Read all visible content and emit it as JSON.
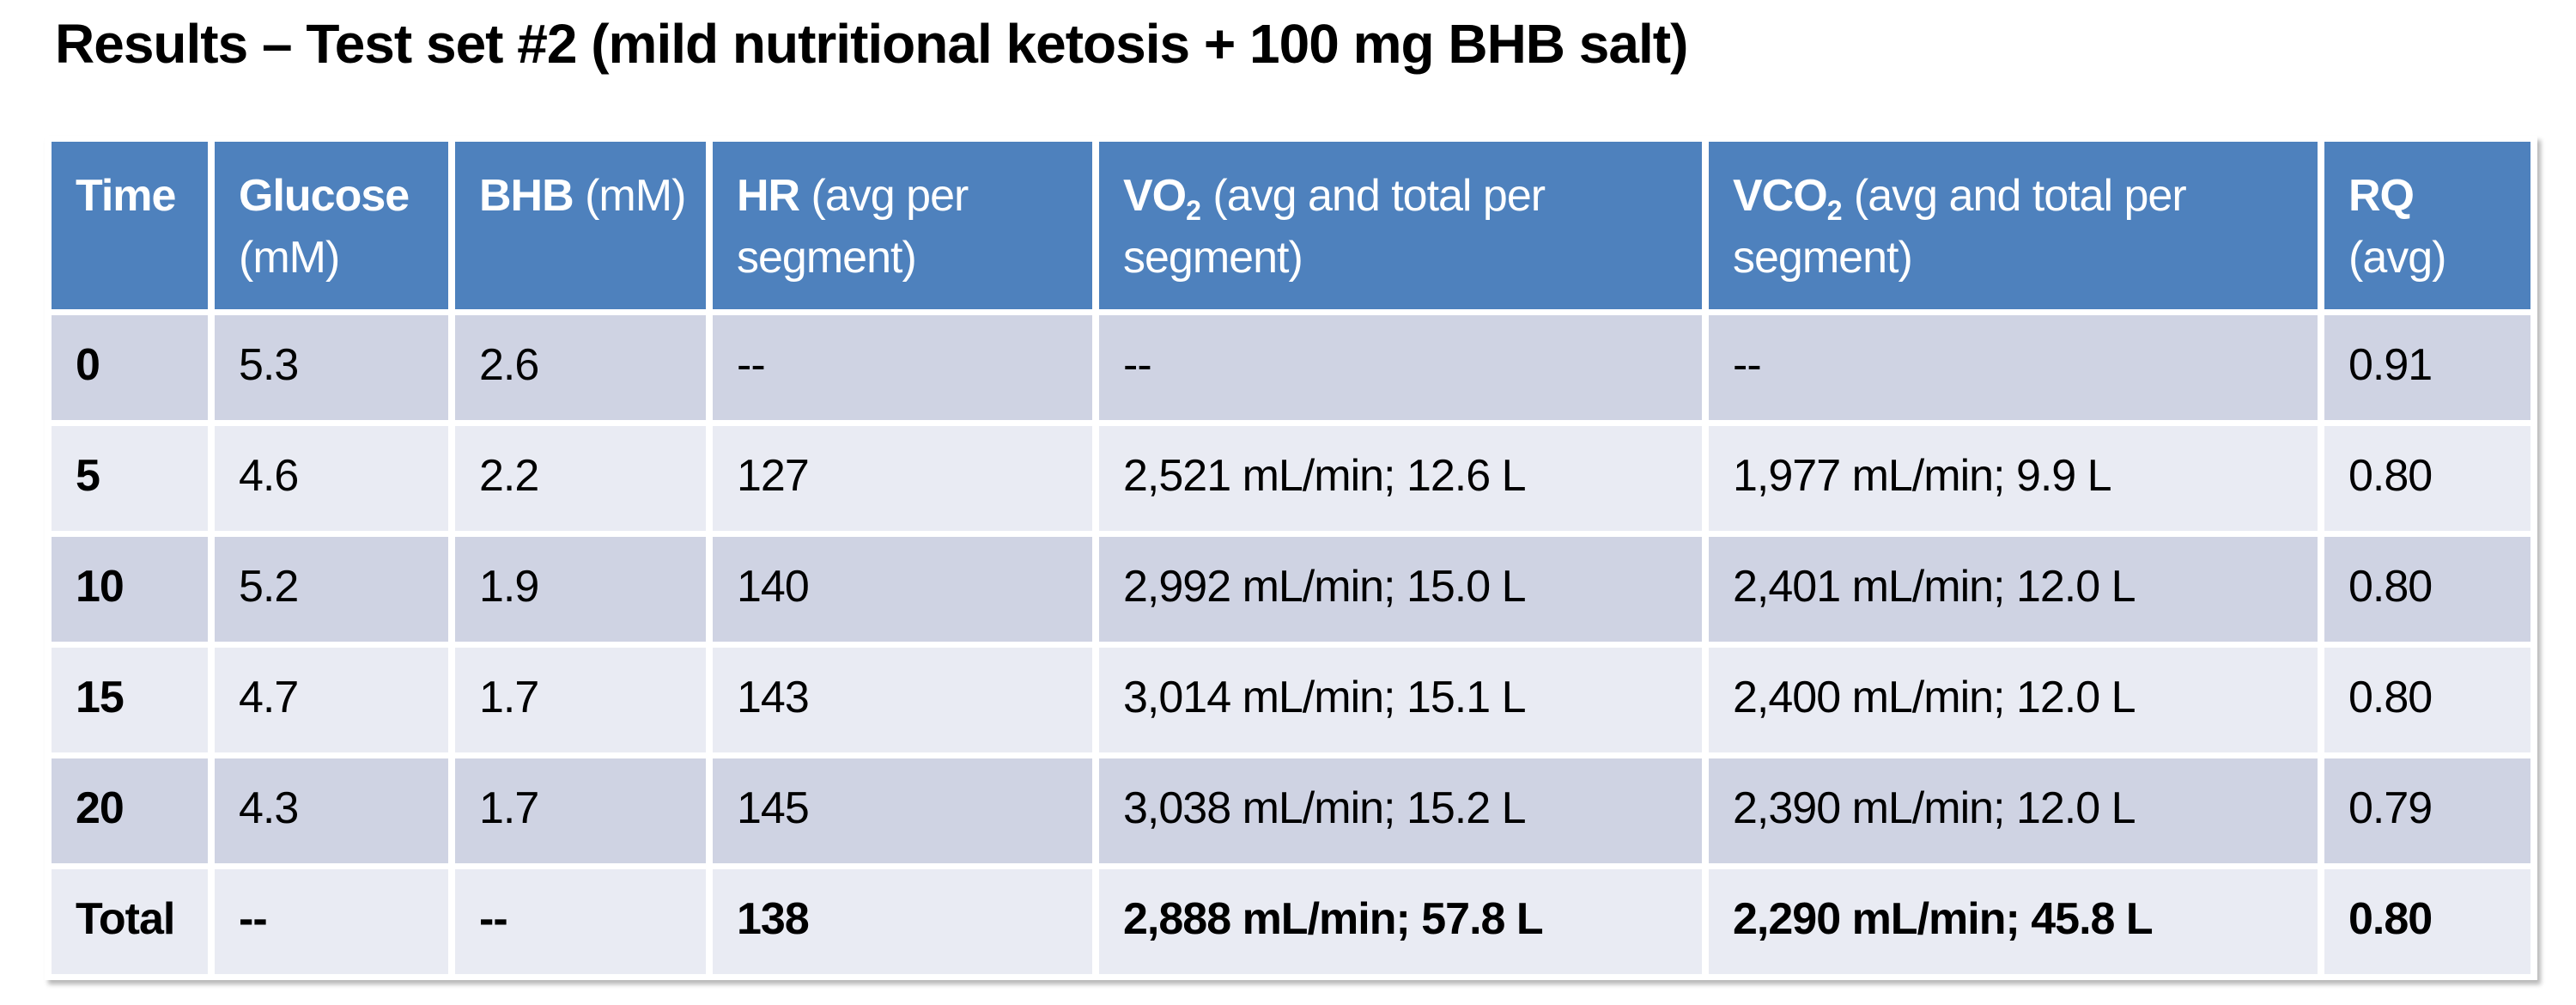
{
  "slide": {
    "title": "Results – Test set #2 (mild nutritional ketosis + 100 mg BHB salt)"
  },
  "colors": {
    "header_bg": "#4E81BD",
    "header_text": "#FFFFFF",
    "band_dark": "#CFD3E3",
    "band_light": "#E9EBF3",
    "body_text": "#000000",
    "page_bg": "#FFFFFF"
  },
  "table": {
    "headers": [
      {
        "b": "Time",
        "s": "",
        "r": ""
      },
      {
        "b": "Glucose",
        "s": "",
        "r": " (mM)"
      },
      {
        "b": "BHB",
        "s": "",
        "r": " (mM)"
      },
      {
        "b": "HR",
        "s": "",
        "r": " (avg per segment)"
      },
      {
        "b": "VO",
        "s": "2",
        "r": " (avg and total per segment)"
      },
      {
        "b": "VCO",
        "s": "2",
        "r": " (avg and total per segment)"
      },
      {
        "b": "RQ",
        "s": "",
        "r": " (avg)"
      }
    ],
    "rows": [
      {
        "cells": [
          "0",
          "5.3",
          "2.6",
          "--",
          "--",
          "--",
          "0.91"
        ],
        "bold": false
      },
      {
        "cells": [
          "5",
          "4.6",
          "2.2",
          "127",
          "2,521 mL/min; 12.6 L",
          "1,977 mL/min; 9.9 L",
          "0.80"
        ],
        "bold": false
      },
      {
        "cells": [
          "10",
          "5.2",
          "1.9",
          "140",
          "2,992 mL/min; 15.0 L",
          "2,401 mL/min; 12.0 L",
          "0.80"
        ],
        "bold": false
      },
      {
        "cells": [
          "15",
          "4.7",
          "1.7",
          "143",
          "3,014 mL/min; 15.1 L",
          "2,400 mL/min; 12.0 L",
          "0.80"
        ],
        "bold": false
      },
      {
        "cells": [
          "20",
          "4.3",
          "1.7",
          "145",
          "3,038 mL/min; 15.2 L",
          "2,390 mL/min; 12.0 L",
          "0.79"
        ],
        "bold": false
      },
      {
        "cells": [
          "Total",
          "--",
          "--",
          "138",
          "2,888 mL/min; 57.8 L",
          "2,290 mL/min; 45.8 L",
          "0.80"
        ],
        "bold": true
      }
    ]
  }
}
